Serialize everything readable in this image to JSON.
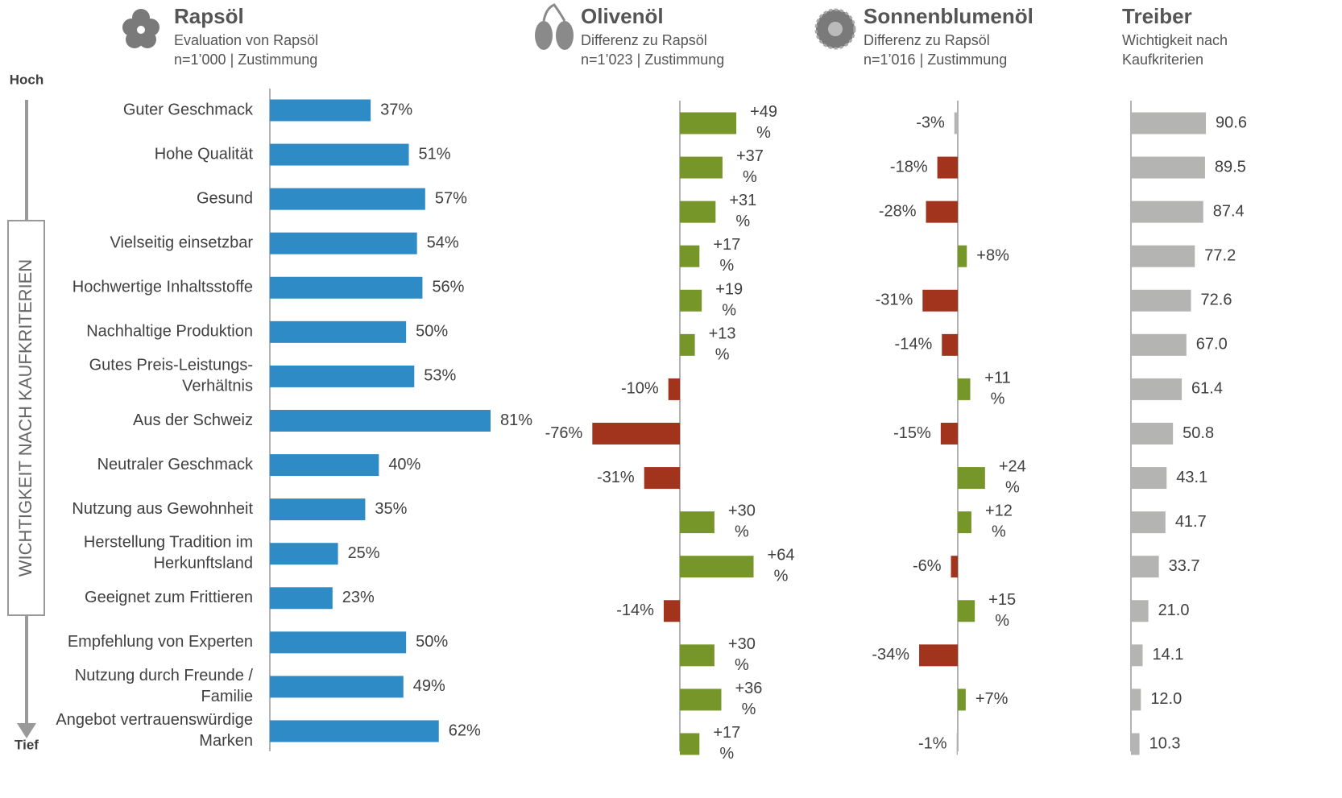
{
  "side_label": "WICHTIGKEIT NACH KAUFKRITERIEN",
  "top_label": "Hoch",
  "bottom_label": "Tief",
  "chart_data": [
    {
      "type": "bar",
      "orientation": "horizontal",
      "title": "Rapsöl",
      "subtitle": [
        "Evaluation von Rapsöl",
        "n=1’000 | Zustimmung"
      ],
      "categories": [
        "Guter Geschmack",
        "Hohe Qualität",
        "Gesund",
        "Vielseitig einsetzbar",
        "Hochwertige Inhaltsstoffe",
        "Nachhaltige Produktion",
        "Gutes Preis-Leistungs-Verhältnis",
        "Aus der Schweiz",
        "Neutraler Geschmack",
        "Nutzung aus Gewohnheit",
        "Herstellung Tradition im Herkunftsland",
        "Geeignet zum Frittieren",
        "Empfehlung von Experten",
        "Nutzung durch Freunde / Familie",
        "Angebot vertrauenswürdige Marken"
      ],
      "values": [
        37,
        51,
        57,
        54,
        56,
        50,
        53,
        81,
        40,
        35,
        25,
        23,
        50,
        49,
        62
      ],
      "value_labels": [
        "37%",
        "51%",
        "57%",
        "54%",
        "56%",
        "50%",
        "53%",
        "81%",
        "40%",
        "35%",
        "25%",
        "23%",
        "50%",
        "49%",
        "62%"
      ],
      "color": "#2e8bc6"
    },
    {
      "type": "diverging-bar",
      "orientation": "horizontal",
      "title": "Olivenöl",
      "subtitle": [
        "Differenz zu Rapsöl",
        "n=1’023 | Zustimmung"
      ],
      "values": [
        49,
        37,
        31,
        17,
        19,
        13,
        -10,
        -76,
        -31,
        30,
        64,
        -14,
        30,
        36,
        17
      ],
      "value_labels": [
        "+49%",
        "+37%",
        "+31%",
        "+17%",
        "+19%",
        "+13%",
        "-10%",
        "-76%",
        "-31%",
        "+30%",
        "+64%",
        "-14%",
        "+30%",
        "+36%",
        "+17%"
      ],
      "positive_color": "#77962a",
      "negative_color": "#a2341e"
    },
    {
      "type": "diverging-bar",
      "orientation": "horizontal",
      "title": "Sonnenblumenöl",
      "subtitle": [
        "Differenz zu Rapsöl",
        "n=1’016 | Zustimmung"
      ],
      "values": [
        -3,
        -18,
        -28,
        8,
        -31,
        -14,
        11,
        -15,
        24,
        12,
        -6,
        15,
        -34,
        7,
        -1
      ],
      "value_labels": [
        "-3%",
        "-18%",
        "-28%",
        "+8%",
        "-31%",
        "-14%",
        "+11%",
        "-15%",
        "+24%",
        "+12%",
        "-6%",
        "+15%",
        "-34%",
        "+7%",
        "-1%"
      ],
      "positive_color": "#77962a",
      "negative_color": "#a2341e",
      "neutral_color": "#b4b4b2"
    },
    {
      "type": "bar",
      "orientation": "horizontal",
      "title": "Treiber",
      "subtitle": [
        "Wichtigkeit nach",
        "Kaufkriterien"
      ],
      "values": [
        90.6,
        89.5,
        87.4,
        77.2,
        72.6,
        67.0,
        61.4,
        50.8,
        43.1,
        41.7,
        33.7,
        21.0,
        14.1,
        12.0,
        10.3
      ],
      "value_labels": [
        "90.6",
        "89.5",
        "87.4",
        "77.2",
        "72.6",
        "67.0",
        "61.4",
        "50.8",
        "43.1",
        "41.7",
        "33.7",
        "21.0",
        "14.1",
        "12.0",
        "10.3"
      ],
      "color": "#b4b4b2"
    }
  ]
}
